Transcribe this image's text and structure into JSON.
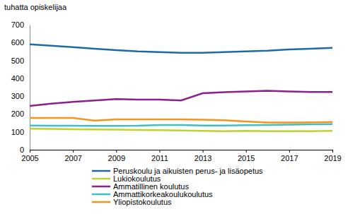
{
  "chart_data": {
    "type": "line",
    "y_label": "tuhatta opiskelijaa",
    "x": [
      2005,
      2006,
      2007,
      2008,
      2009,
      2010,
      2011,
      2012,
      2013,
      2014,
      2015,
      2016,
      2017,
      2018,
      2019
    ],
    "xlim": [
      2005,
      2019
    ],
    "xticks": [
      2005,
      2007,
      2009,
      2011,
      2013,
      2015,
      2017,
      2019
    ],
    "ylim": [
      0,
      700
    ],
    "yticks": [
      0,
      100,
      200,
      300,
      400,
      500,
      600,
      700
    ],
    "grid": false,
    "series": [
      {
        "name": "Peruskoulu ja aikuisten perus- ja lisäopetus",
        "color": "#1f6aa6",
        "values": [
          590,
          582,
          574,
          566,
          558,
          551,
          547,
          543,
          543,
          547,
          551,
          555,
          562,
          566,
          570
        ]
      },
      {
        "name": "Lukiokoulutus",
        "color": "#bcd42f",
        "values": [
          118,
          117,
          115,
          114,
          113,
          111,
          110,
          108,
          106,
          104,
          106,
          104,
          104,
          104,
          106
        ]
      },
      {
        "name": "Ammatillinen koulutus",
        "color": "#8e1f8f",
        "values": [
          245,
          258,
          268,
          276,
          284,
          281,
          281,
          276,
          316,
          322,
          326,
          330,
          326,
          323,
          323
        ]
      },
      {
        "name": "Ammattikorkeakoulukoulutus",
        "color": "#3fbec6",
        "values": [
          135,
          134,
          134,
          133,
          133,
          134,
          138,
          138,
          135,
          135,
          137,
          138,
          140,
          142,
          143
        ]
      },
      {
        "name": "Yliopistokoulutus",
        "color": "#f7941d",
        "values": [
          178,
          178,
          178,
          163,
          170,
          170,
          170,
          170,
          168,
          165,
          158,
          152,
          152,
          153,
          155
        ]
      }
    ]
  }
}
